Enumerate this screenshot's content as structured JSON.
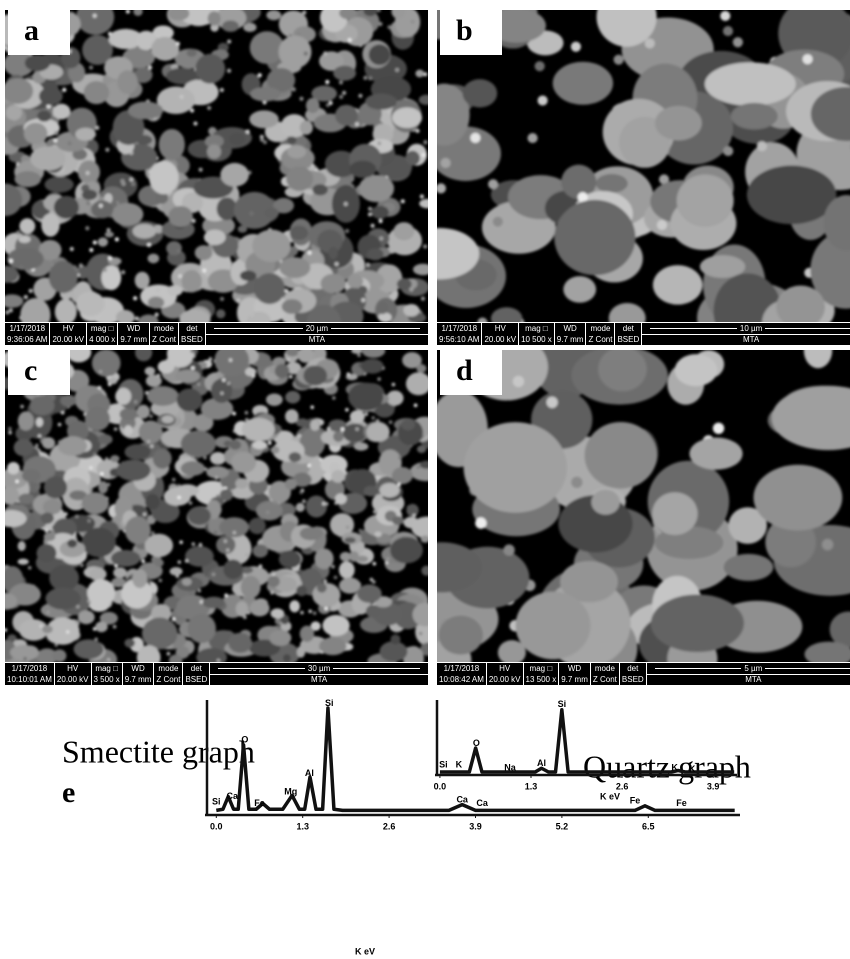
{
  "info_headers": {
    "hv": "HV",
    "mag": "mag □",
    "wd": "WD",
    "mode": "mode",
    "det": "det"
  },
  "panels": [
    {
      "label": "a",
      "date": "1/17/2018",
      "time": "9:36:06 AM",
      "hv": "20.00 kV",
      "mag": "4 000 x",
      "wd": "9.7 mm",
      "mode": "Z Cont",
      "det": "BSED",
      "scale": "20 µm",
      "lab": "MTA"
    },
    {
      "label": "b",
      "date": "1/17/2018",
      "time": "9:56:10 AM",
      "hv": "20.00 kV",
      "mag": "10 500 x",
      "wd": "9.7 mm",
      "mode": "Z Cont",
      "det": "BSED",
      "scale": "10 µm",
      "lab": "MTA"
    },
    {
      "label": "c",
      "date": "1/17/2018",
      "time": "10:10:01 AM",
      "hv": "20.00 kV",
      "mag": "3 500 x",
      "wd": "9.7 mm",
      "mode": "Z Cont",
      "det": "BSED",
      "scale": "30 µm",
      "lab": "MTA"
    },
    {
      "label": "d",
      "date": "1/17/2018",
      "time": "10:08:42 AM",
      "hv": "20.00 kV",
      "mag": "13 500 x",
      "wd": "9.7 mm",
      "mode": "Z Cont",
      "det": "BSED",
      "scale": "5 µm",
      "lab": "MTA"
    }
  ],
  "panel_e_label": "e",
  "chart_data": [
    {
      "type": "line",
      "title": "Smectite graph",
      "x_label": "K eV",
      "color": "#111111",
      "x": [
        0,
        0.1,
        0.18,
        0.26,
        0.33,
        0.41,
        0.49,
        0.6,
        0.7,
        0.8,
        1.0,
        1.14,
        1.25,
        1.33,
        1.41,
        1.5,
        1.6,
        1.68,
        1.77,
        1.9,
        3.5,
        3.7,
        3.9,
        6.3,
        6.45,
        6.6,
        7.8
      ],
      "values": [
        4,
        5,
        16,
        5,
        5,
        61,
        5,
        5,
        10,
        5,
        5,
        17,
        5,
        5,
        33,
        5,
        5,
        93,
        5,
        4,
        4,
        9,
        4,
        4,
        8,
        4,
        4
      ],
      "xlim": [
        -0.17,
        7.88
      ],
      "ylim": [
        0,
        100
      ],
      "xticks": [
        {
          "value": 0,
          "label": "0.0"
        },
        1.3,
        2.6,
        3.9,
        5.2,
        6.5
      ],
      "annotations": [
        {
          "text": "Si",
          "x": 0.0,
          "y": 11
        },
        {
          "text": "Ca",
          "x": 0.24,
          "y": 16
        },
        {
          "text": "Fe",
          "x": 0.65,
          "y": 10
        },
        {
          "text": "Mg",
          "x": 1.12,
          "y": 20
        },
        {
          "text": "Al",
          "x": 1.4,
          "y": 36
        },
        {
          "text": "Si",
          "x": 1.7,
          "y": 97
        },
        {
          "text": "O",
          "x": 0.43,
          "y": 65
        },
        {
          "text": "Ca",
          "x": 3.7,
          "y": 13
        },
        {
          "text": "Ca",
          "x": 4.0,
          "y": 10
        },
        {
          "text": "Fe",
          "x": 6.3,
          "y": 12
        },
        {
          "text": "Fe",
          "x": 7.0,
          "y": 10
        }
      ]
    },
    {
      "type": "line",
      "title": "Quartz graph",
      "x_label": "K eV",
      "color": "#111111",
      "x": [
        0,
        0.3,
        0.42,
        0.51,
        0.6,
        1.0,
        1.36,
        1.45,
        1.55,
        1.65,
        1.74,
        1.83,
        2.0,
        3.3,
        3.4,
        3.5,
        4.2
      ],
      "values": [
        4,
        4,
        4,
        36,
        4,
        4,
        4,
        9,
        4,
        4,
        87,
        4,
        4,
        4,
        6,
        4,
        4
      ],
      "xlim": [
        -0.07,
        4.24
      ],
      "ylim": [
        0,
        100
      ],
      "xticks": [
        {
          "value": 0,
          "label": "0.0"
        },
        1.3,
        2.6,
        3.9
      ],
      "annotations": [
        {
          "text": "Si",
          "x": 0.05,
          "y": 13
        },
        {
          "text": "K",
          "x": 0.27,
          "y": 13
        },
        {
          "text": "O",
          "x": 0.52,
          "y": 42
        },
        {
          "text": "Na",
          "x": 1.0,
          "y": 9
        },
        {
          "text": "Al",
          "x": 1.45,
          "y": 15
        },
        {
          "text": "Si",
          "x": 1.74,
          "y": 94
        },
        {
          "text": "K",
          "x": 3.35,
          "y": 9
        },
        {
          "text": "K",
          "x": 3.6,
          "y": 7
        }
      ]
    }
  ]
}
